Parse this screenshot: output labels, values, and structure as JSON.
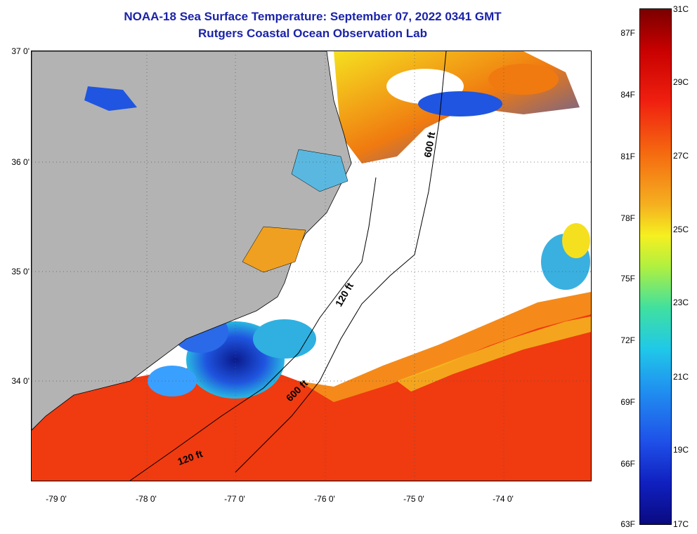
{
  "title": {
    "line1": "NOAA-18 Sea Surface Temperature:  September 07, 2022 0341 GMT",
    "line2": "Rutgers Coastal Ocean Observation Lab"
  },
  "map": {
    "lat_labels": [
      "37 0'",
      "36 0'",
      "35 0'",
      "34 0'"
    ],
    "lon_labels": [
      "-79 0'",
      "-78 0'",
      "-77 0'",
      "-76 0'",
      "-75 0'",
      "-74 0'"
    ],
    "contour_labels": {
      "c600_north": "600 ft",
      "c120_north": "120 ft",
      "c600_south": "600 ft",
      "c120_south": "120 ft"
    },
    "colors": {
      "land": "#b3b3b3",
      "cloud": "#ffffff",
      "warm": "#f03a10",
      "cool": "#1a3bd6",
      "mid": "#f5e020"
    }
  },
  "colorbar": {
    "fahrenheit": [
      "87F",
      "84F",
      "81F",
      "78F",
      "75F",
      "72F",
      "69F",
      "66F",
      "63F"
    ],
    "celsius": [
      "31C",
      "29C",
      "27C",
      "25C",
      "23C",
      "21C",
      "19C",
      "17C"
    ],
    "min_c": 17,
    "max_c": 31
  }
}
